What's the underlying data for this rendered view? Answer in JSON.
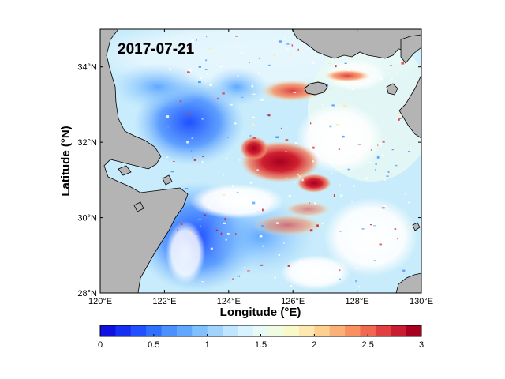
{
  "map": {
    "date_label": "2017-07-21",
    "xlabel": "Longitude (°E)",
    "ylabel": "Latitude (°N)",
    "lon_range": [
      120,
      130
    ],
    "lat_range": [
      28,
      35
    ],
    "lon_ticks": [
      {
        "value": 120,
        "label": "120°E"
      },
      {
        "value": 122,
        "label": "122°E"
      },
      {
        "value": 124,
        "label": "124°E"
      },
      {
        "value": 126,
        "label": "126°E"
      },
      {
        "value": 128,
        "label": "128°E"
      },
      {
        "value": 130,
        "label": "130°E"
      }
    ],
    "lat_ticks": [
      {
        "value": 28,
        "label": "28°N"
      },
      {
        "value": 30,
        "label": "30°N"
      },
      {
        "value": 32,
        "label": "32°N"
      },
      {
        "value": 34,
        "label": "34°N"
      }
    ],
    "land_color": "#b4b4b4",
    "nodata_color": "#ffffff"
  },
  "colorbar": {
    "min": 0,
    "max": 3,
    "ticks": [
      {
        "value": 0,
        "label": "0"
      },
      {
        "value": 0.5,
        "label": "0.5"
      },
      {
        "value": 1,
        "label": "1"
      },
      {
        "value": 1.5,
        "label": "1.5"
      },
      {
        "value": 2,
        "label": "2"
      },
      {
        "value": 2.5,
        "label": "2.5"
      },
      {
        "value": 3,
        "label": "3"
      }
    ],
    "colors": [
      "#1010e0",
      "#1530f0",
      "#2050ff",
      "#3070ff",
      "#4a90ff",
      "#60a8ff",
      "#80c0ff",
      "#a0d4ff",
      "#c0e6ff",
      "#d8f2ff",
      "#e8faf4",
      "#f0fce0",
      "#f8f8c8",
      "#fde8b0",
      "#fdd090",
      "#fbb078",
      "#f89060",
      "#f06850",
      "#e04040",
      "#c81c30",
      "#a80020"
    ]
  }
}
